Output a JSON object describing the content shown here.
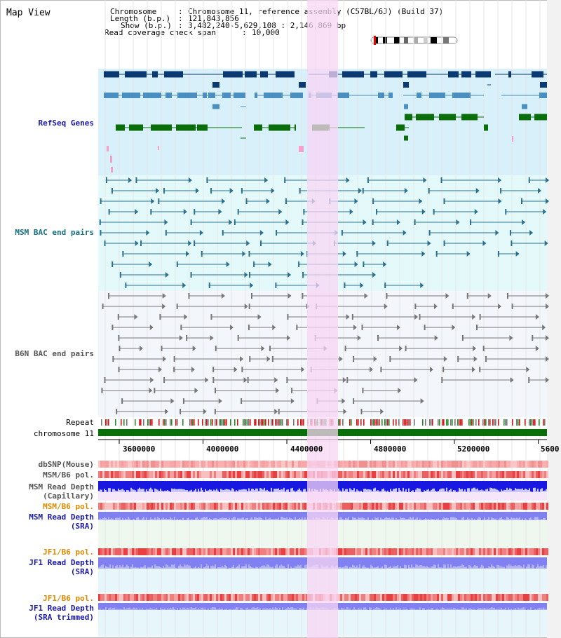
{
  "title": "Map View",
  "header": {
    "chromosome_key": "Chromosome",
    "chromosome_value": "Chromosome 11, reference assembly (C57BL/6J) (Build 37)",
    "length_key": "Length (b.p.)",
    "length_value": "121,843,856",
    "show_key": "Show (b.p.)",
    "show_value": "3,482,240-5,629,108 : 2,146,869 bp",
    "span_key": "Read coverage check span",
    "span_value": "10,000"
  },
  "tracks": {
    "refseq": "RefSeq Genes",
    "msm_bac": "MSM BAC end pairs",
    "b6n_bac": "B6N BAC end pairs",
    "repeat": "Repeat",
    "chromosome": "chromosome 11",
    "dbsnp": "dbSNP(Mouse)",
    "msm_b6_pol1": "MSM/B6 pol.",
    "msm_rd_cap_1": "MSM Read Depth",
    "msm_rd_cap_2": "(Capillary)",
    "msm_b6_pol2": "MSM/B6 pol.",
    "msm_rd_sra_1": "MSM Read Depth",
    "msm_rd_sra_2": "(SRA)",
    "jf1_b6_pol1": "JF1/B6 pol.",
    "jf1_rd_sra_1": "JF1 Read Depth",
    "jf1_rd_sra_2": "(SRA)",
    "jf1_b6_pol2": "JF1/B6 pol.",
    "jf1_rd_trim_1": "JF1 Read Depth",
    "jf1_rd_trim_2": "(SRA trimmed)"
  },
  "axis": {
    "ticks": [
      "3600000",
      "4000000",
      "4400000",
      "4800000",
      "5200000",
      "5600"
    ]
  },
  "colors": {
    "refseq_bg": "#d8f0fa",
    "msm_bg": "#e4fafa",
    "b6n_bg": "#f3f6fb",
    "highlight": "#f8d6f4",
    "refseq_dark": "#0b3a73",
    "refseq_mid": "#4a8fbf",
    "refseq_green": "#0a6e0a",
    "msm_line": "#2a7090",
    "b6n_line": "#777777",
    "chromosome_bar": "#0a6e0a",
    "label_blue": "#1a1aaa",
    "label_teal": "#157080",
    "label_gray": "#555555",
    "label_orange": "#e08a00"
  }
}
